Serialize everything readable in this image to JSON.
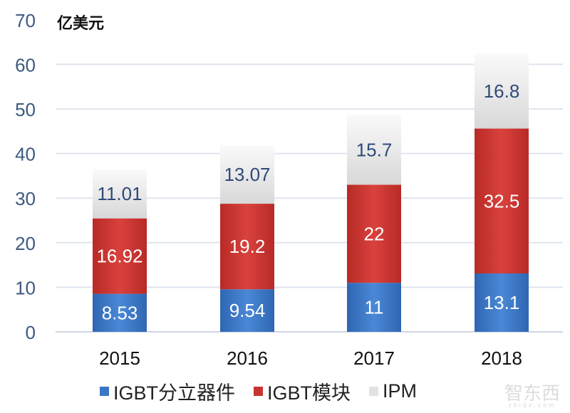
{
  "chart_data": {
    "type": "bar",
    "stacked": true,
    "unit_label": "亿美元",
    "categories": [
      "2015",
      "2016",
      "2017",
      "2018"
    ],
    "series": [
      {
        "name": "IGBT分立器件",
        "values": [
          8.53,
          9.54,
          11,
          13.1
        ],
        "labels": [
          "8.53",
          "9.54",
          "11",
          "13.1"
        ],
        "color": "#3a76c4"
      },
      {
        "name": "IGBT模块",
        "values": [
          16.92,
          19.2,
          22,
          32.5
        ],
        "labels": [
          "16.92",
          "19.2",
          "22",
          "32.5"
        ],
        "color": "#c8332f"
      },
      {
        "name": "IPM",
        "values": [
          11.01,
          13.07,
          15.7,
          16.8
        ],
        "labels": [
          "11.01",
          "13.07",
          "15.7",
          "16.8"
        ],
        "color": "#e6e6e6"
      }
    ],
    "ylim": [
      0,
      70
    ],
    "yticks": [
      "0",
      "10",
      "20",
      "30",
      "40",
      "50",
      "60",
      "70"
    ],
    "grid": true,
    "legend": "bottom"
  },
  "watermark": {
    "text": "智东西",
    "sub": "zhidx.com"
  }
}
